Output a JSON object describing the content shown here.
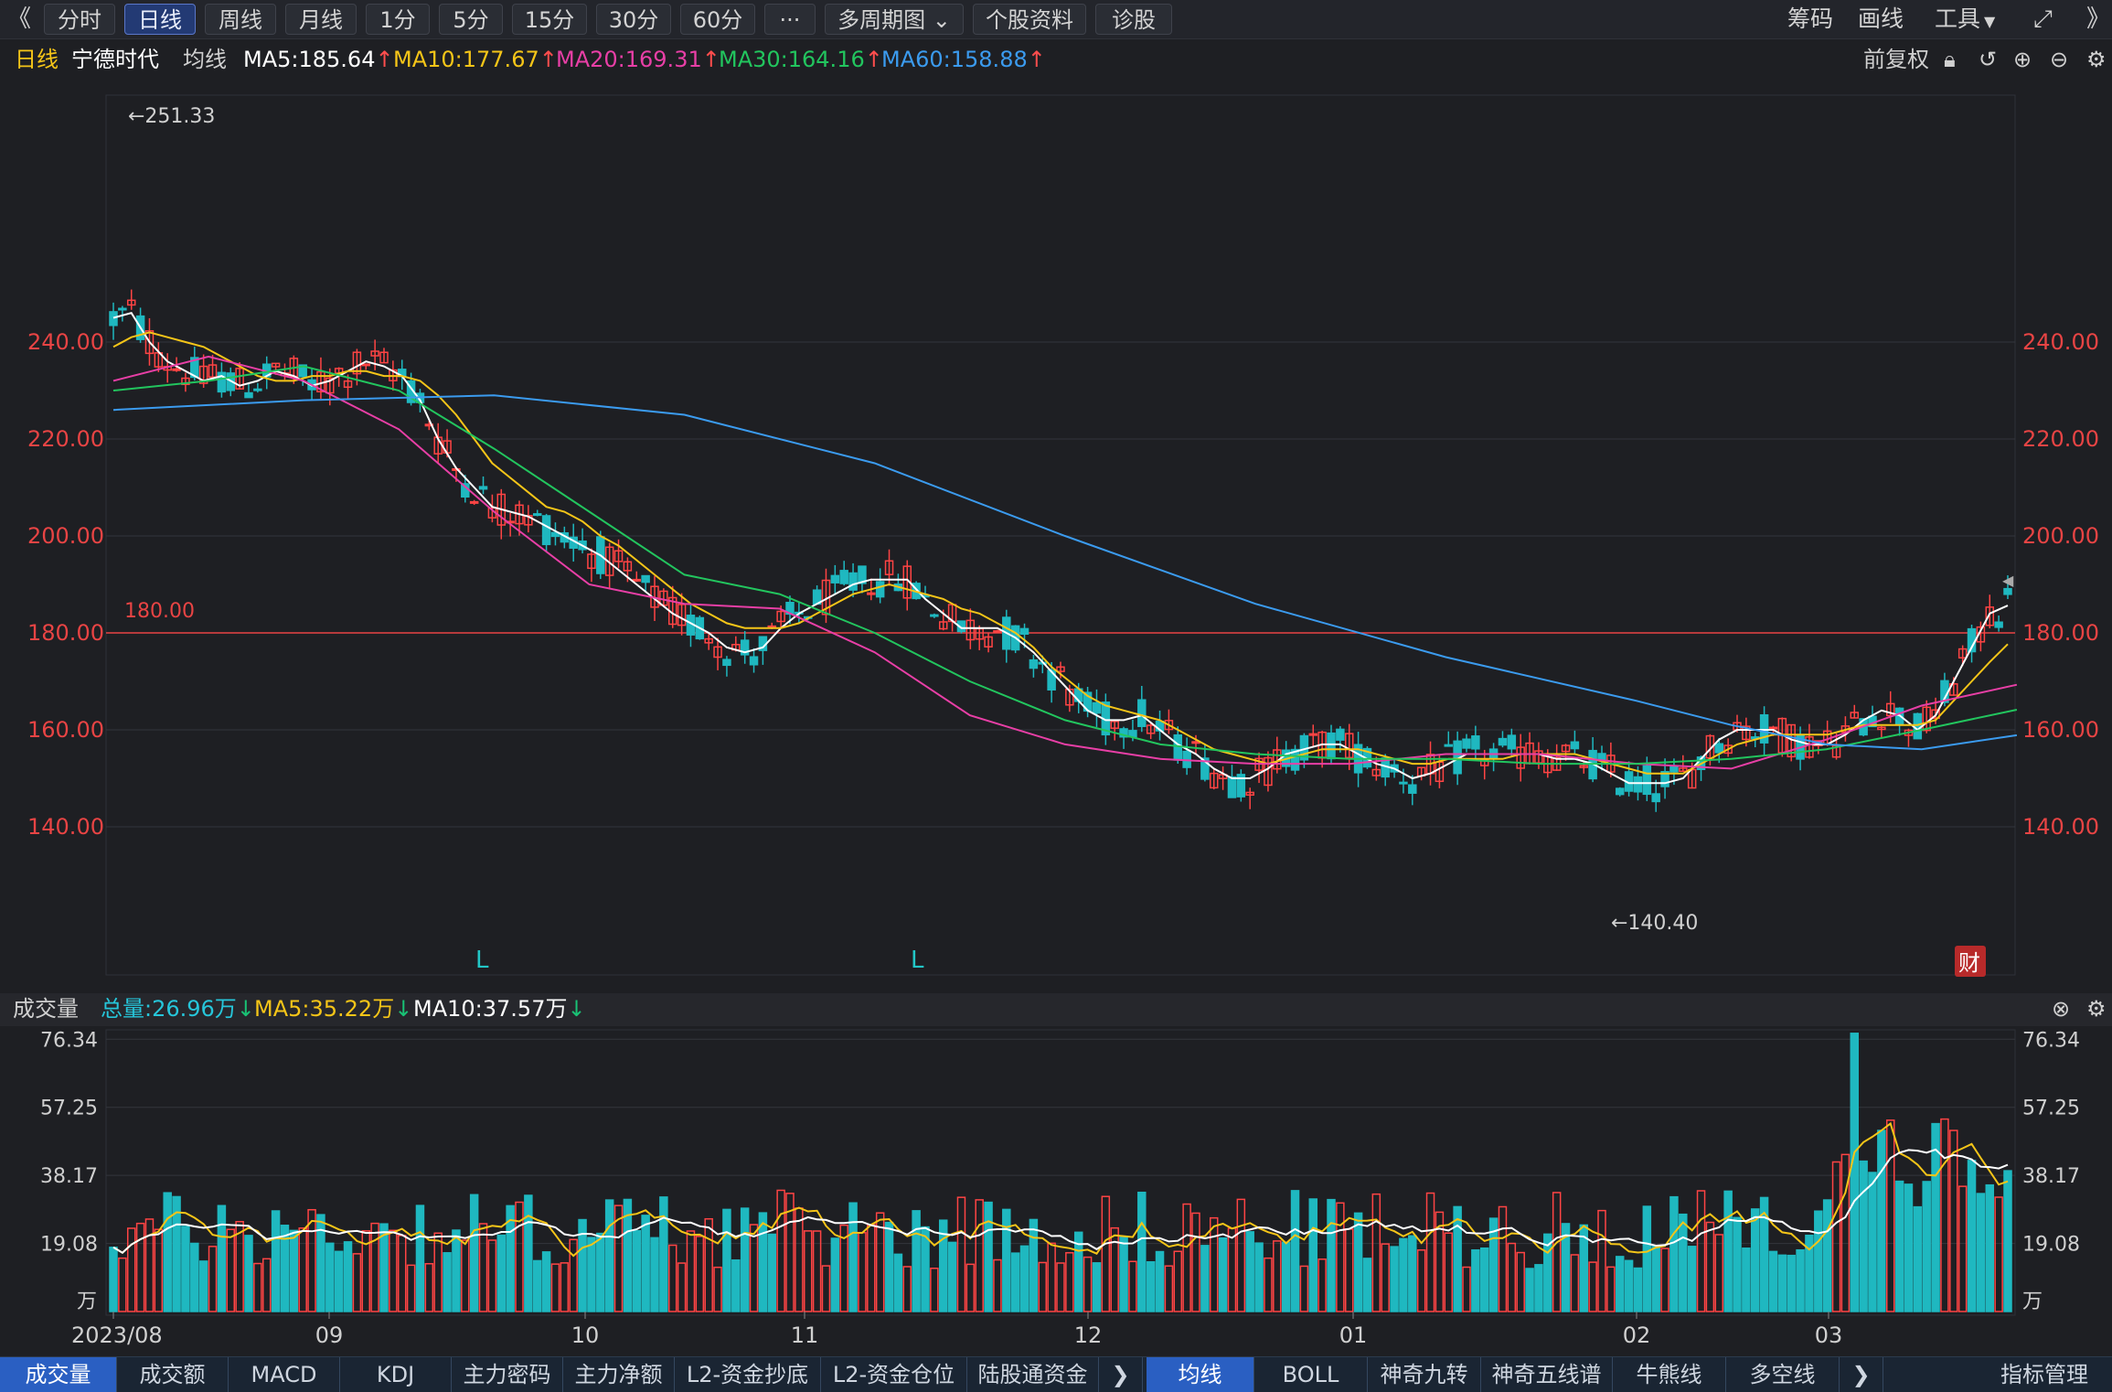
{
  "toolbar": {
    "back": "《",
    "tabs": [
      "分时",
      "日线",
      "周线",
      "月线",
      "1分",
      "5分",
      "15分",
      "30分",
      "60分",
      "···",
      "多周期图 ⌄",
      "个股资料",
      "诊股"
    ],
    "active_tab": "日线",
    "right": [
      "筹码",
      "画线",
      "工具"
    ]
  },
  "info": {
    "period": "日线",
    "stock": "宁德时代",
    "ma_label": "均线",
    "ma": [
      {
        "label": "MA5:185.64",
        "color": "#ffffff"
      },
      {
        "label": "MA10:177.67",
        "color": "#f5c518"
      },
      {
        "label": "MA20:169.31",
        "color": "#e83fa6"
      },
      {
        "label": "MA30:164.16",
        "color": "#22c55e"
      },
      {
        "label": "MA60:158.88",
        "color": "#3b9bef"
      }
    ],
    "right_label": "前复权"
  },
  "price_chart": {
    "y_ticks": [
      "240.00",
      "220.00",
      "200.00",
      "180.00",
      "160.00",
      "140.00"
    ],
    "high_label": "←251.33",
    "low_label": "←140.40",
    "line_label": "180.00",
    "L_marks": [
      "L",
      "L"
    ],
    "fin_badge": "财"
  },
  "volume": {
    "title": "成交量",
    "total": "总量:26.96万",
    "ma5": "MA5:35.22万",
    "ma10": "MA10:37.57万",
    "y_ticks": [
      "76.34",
      "57.25",
      "38.17",
      "19.08",
      "万"
    ],
    "x_labels": [
      "2023/08",
      "09",
      "10",
      "11",
      "12",
      "01",
      "02",
      "03"
    ]
  },
  "bottom_tabs_left": [
    "成交量",
    "成交额",
    "MACD",
    "KDJ",
    "主力密码",
    "主力净额",
    "L2-资金抄底",
    "L2-资金仓位",
    "陆股通资金"
  ],
  "bottom_tabs_right": [
    "均线",
    "BOLL",
    "神奇九转",
    "神奇五线谱",
    "牛熊线",
    "多空线"
  ],
  "bottom_right": "指标管理",
  "chart_data": {
    "type": "candlestick",
    "title": "宁德时代 日线",
    "y_range": [
      132,
      257
    ],
    "reference_line": 180,
    "x_labels": [
      "2023/08",
      "09",
      "10",
      "11",
      "12",
      "01",
      "02",
      "03"
    ],
    "price_high": 251.33,
    "price_low": 140.4,
    "ma_lines": [
      {
        "name": "MA5",
        "color": "#ffffff",
        "points": [
          [
            0,
            245
          ],
          [
            2,
            246
          ],
          [
            4,
            240
          ],
          [
            6,
            236
          ],
          [
            8,
            234
          ],
          [
            10,
            232
          ],
          [
            12,
            233
          ],
          [
            14,
            231
          ],
          [
            16,
            232
          ],
          [
            18,
            234
          ],
          [
            20,
            233
          ],
          [
            22,
            231
          ],
          [
            24,
            232
          ],
          [
            26,
            234
          ],
          [
            28,
            236
          ],
          [
            30,
            235
          ],
          [
            32,
            233
          ],
          [
            34,
            228
          ],
          [
            36,
            220
          ],
          [
            38,
            214
          ],
          [
            40,
            210
          ],
          [
            42,
            206
          ],
          [
            44,
            205
          ],
          [
            46,
            204
          ],
          [
            48,
            202
          ],
          [
            50,
            200
          ],
          [
            52,
            198
          ],
          [
            54,
            196
          ],
          [
            56,
            193
          ],
          [
            58,
            190
          ],
          [
            60,
            187
          ],
          [
            62,
            184
          ],
          [
            64,
            182
          ],
          [
            66,
            180
          ],
          [
            68,
            177
          ],
          [
            70,
            176
          ],
          [
            72,
            177
          ],
          [
            74,
            181
          ],
          [
            76,
            184
          ],
          [
            78,
            186
          ],
          [
            80,
            188
          ],
          [
            82,
            190
          ],
          [
            84,
            191
          ],
          [
            86,
            191
          ],
          [
            88,
            191
          ],
          [
            90,
            187
          ],
          [
            92,
            184
          ],
          [
            94,
            181
          ],
          [
            96,
            181
          ],
          [
            98,
            181
          ],
          [
            100,
            179
          ],
          [
            102,
            176
          ],
          [
            104,
            172
          ],
          [
            106,
            168
          ],
          [
            108,
            164
          ],
          [
            110,
            162
          ],
          [
            112,
            162
          ],
          [
            114,
            163
          ],
          [
            116,
            160
          ],
          [
            118,
            157
          ],
          [
            120,
            155
          ],
          [
            122,
            152
          ],
          [
            124,
            150
          ],
          [
            126,
            150
          ],
          [
            128,
            152
          ],
          [
            130,
            155
          ],
          [
            132,
            156
          ],
          [
            134,
            157
          ],
          [
            136,
            157
          ],
          [
            138,
            155
          ],
          [
            140,
            153
          ],
          [
            142,
            152
          ],
          [
            144,
            150
          ],
          [
            146,
            151
          ],
          [
            148,
            153
          ],
          [
            150,
            155
          ],
          [
            152,
            155
          ],
          [
            154,
            155
          ],
          [
            156,
            155
          ],
          [
            158,
            155
          ],
          [
            160,
            154
          ],
          [
            162,
            154
          ],
          [
            164,
            153
          ],
          [
            166,
            151
          ],
          [
            168,
            149
          ],
          [
            170,
            149
          ],
          [
            172,
            149
          ],
          [
            174,
            150
          ],
          [
            176,
            154
          ],
          [
            178,
            158
          ],
          [
            180,
            160
          ],
          [
            182,
            160
          ],
          [
            184,
            160
          ],
          [
            186,
            158
          ],
          [
            188,
            157
          ],
          [
            190,
            157
          ],
          [
            192,
            159
          ],
          [
            194,
            162
          ],
          [
            196,
            164
          ],
          [
            198,
            163
          ],
          [
            200,
            160
          ],
          [
            202,
            163
          ],
          [
            204,
            170
          ],
          [
            206,
            177
          ],
          [
            208,
            184
          ],
          [
            210,
            185.64
          ]
        ]
      },
      {
        "name": "MA10",
        "color": "#f5c518",
        "points": [
          [
            0,
            239
          ],
          [
            2,
            241
          ],
          [
            4,
            242
          ],
          [
            6,
            241
          ],
          [
            8,
            240
          ],
          [
            10,
            239
          ],
          [
            12,
            237
          ],
          [
            14,
            235
          ],
          [
            16,
            233
          ],
          [
            18,
            232
          ],
          [
            20,
            232
          ],
          [
            22,
            233
          ],
          [
            24,
            233
          ],
          [
            26,
            234
          ],
          [
            28,
            234
          ],
          [
            30,
            233
          ],
          [
            32,
            233
          ],
          [
            34,
            232
          ],
          [
            36,
            229
          ],
          [
            38,
            225
          ],
          [
            40,
            220
          ],
          [
            42,
            215
          ],
          [
            44,
            212
          ],
          [
            46,
            209
          ],
          [
            48,
            206
          ],
          [
            50,
            205
          ],
          [
            52,
            203
          ],
          [
            54,
            200
          ],
          [
            56,
            198
          ],
          [
            58,
            195
          ],
          [
            60,
            192
          ],
          [
            62,
            189
          ],
          [
            64,
            186
          ],
          [
            66,
            184
          ],
          [
            68,
            182
          ],
          [
            70,
            181
          ],
          [
            72,
            181
          ],
          [
            74,
            181
          ],
          [
            76,
            182
          ],
          [
            78,
            184
          ],
          [
            80,
            186
          ],
          [
            82,
            188
          ],
          [
            84,
            189
          ],
          [
            86,
            190
          ],
          [
            88,
            189
          ],
          [
            90,
            188
          ],
          [
            92,
            187
          ],
          [
            94,
            185
          ],
          [
            96,
            184
          ],
          [
            98,
            182
          ],
          [
            100,
            180
          ],
          [
            102,
            177
          ],
          [
            104,
            173
          ],
          [
            106,
            170
          ],
          [
            108,
            167
          ],
          [
            110,
            165
          ],
          [
            112,
            164
          ],
          [
            114,
            163
          ],
          [
            116,
            162
          ],
          [
            118,
            160
          ],
          [
            120,
            158
          ],
          [
            122,
            156
          ],
          [
            124,
            155
          ],
          [
            126,
            154
          ],
          [
            128,
            153
          ],
          [
            130,
            154
          ],
          [
            132,
            155
          ],
          [
            134,
            156
          ],
          [
            136,
            156
          ],
          [
            138,
            156
          ],
          [
            140,
            155
          ],
          [
            142,
            154
          ],
          [
            144,
            153
          ],
          [
            146,
            153
          ],
          [
            148,
            154
          ],
          [
            150,
            154
          ],
          [
            152,
            154
          ],
          [
            154,
            154
          ],
          [
            156,
            155
          ],
          [
            158,
            155
          ],
          [
            160,
            155
          ],
          [
            162,
            155
          ],
          [
            164,
            154
          ],
          [
            166,
            153
          ],
          [
            168,
            152
          ],
          [
            170,
            151
          ],
          [
            172,
            151
          ],
          [
            174,
            151
          ],
          [
            176,
            153
          ],
          [
            178,
            155
          ],
          [
            180,
            157
          ],
          [
            182,
            158
          ],
          [
            184,
            159
          ],
          [
            186,
            159
          ],
          [
            188,
            159
          ],
          [
            190,
            159
          ],
          [
            192,
            160
          ],
          [
            194,
            161
          ],
          [
            196,
            161
          ],
          [
            198,
            161
          ],
          [
            200,
            161
          ],
          [
            202,
            162
          ],
          [
            204,
            166
          ],
          [
            206,
            170
          ],
          [
            208,
            174
          ],
          [
            210,
            177.67
          ]
        ]
      }
    ],
    "volume_range": [
      0,
      80
    ],
    "volume_unit": "万"
  }
}
